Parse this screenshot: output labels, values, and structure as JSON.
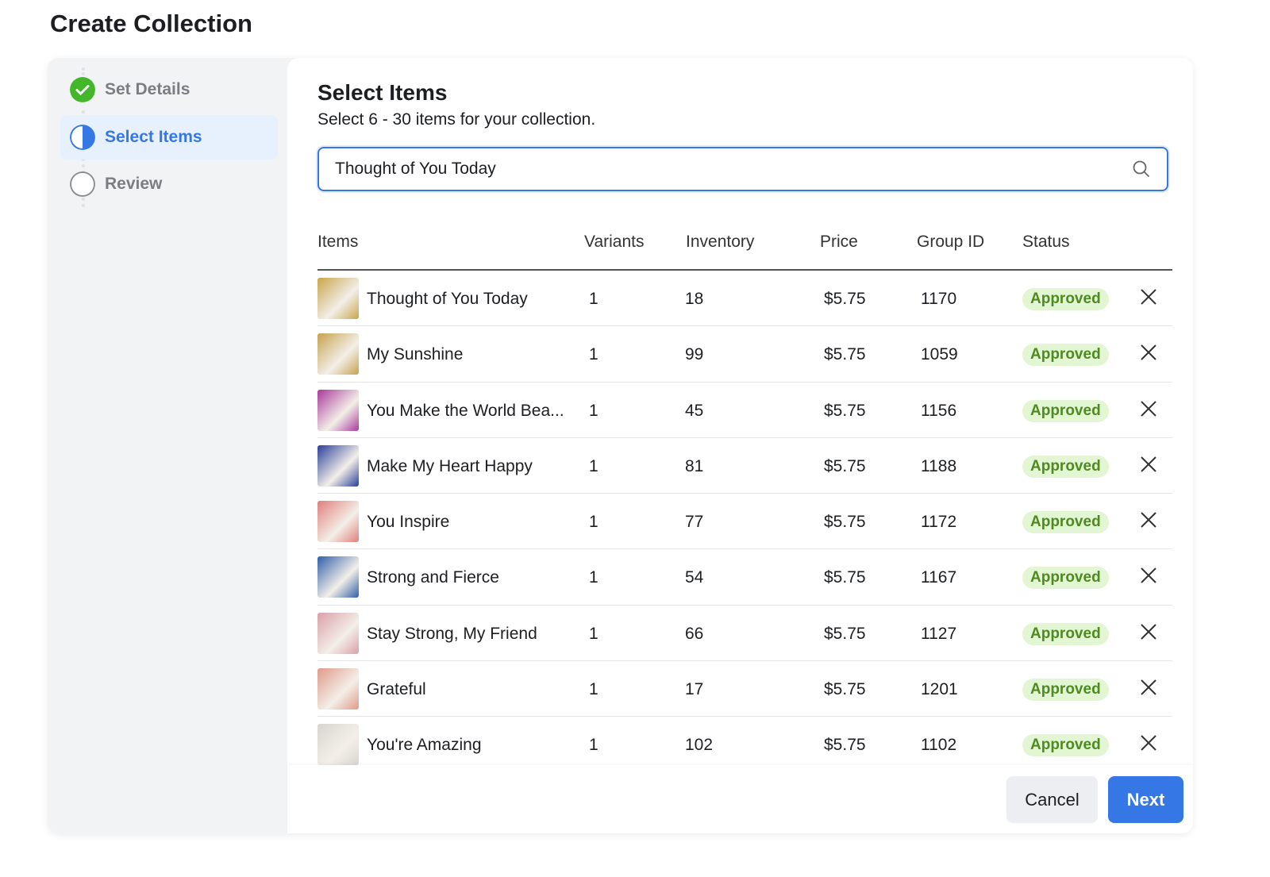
{
  "page_title": "Create Collection",
  "steps": [
    {
      "label": "Set Details",
      "state": "complete"
    },
    {
      "label": "Select Items",
      "state": "active"
    },
    {
      "label": "Review",
      "state": "pending"
    }
  ],
  "main": {
    "title": "Select Items",
    "subtitle": "Select 6 - 30 items for your collection.",
    "search_value": "Thought of You Today"
  },
  "columns": [
    "Items",
    "Variants",
    "Inventory",
    "Price",
    "Group ID",
    "Status"
  ],
  "rows": [
    {
      "name": "Thought of You Today",
      "variants": "1",
      "inventory": "18",
      "price": "$5.75",
      "group": "1170",
      "status": "Approved",
      "thumb": "#c9a54a"
    },
    {
      "name": "My Sunshine",
      "variants": "1",
      "inventory": "99",
      "price": "$5.75",
      "group": "1059",
      "status": "Approved",
      "thumb": "#c6a24e"
    },
    {
      "name": "You Make the World Bea...",
      "variants": "1",
      "inventory": "45",
      "price": "$5.75",
      "group": "1156",
      "status": "Approved",
      "thumb": "#a83a9a"
    },
    {
      "name": "Make My Heart Happy",
      "variants": "1",
      "inventory": "81",
      "price": "$5.75",
      "group": "1188",
      "status": "Approved",
      "thumb": "#2a3f9a"
    },
    {
      "name": "You Inspire",
      "variants": "1",
      "inventory": "77",
      "price": "$5.75",
      "group": "1172",
      "status": "Approved",
      "thumb": "#e07f7a"
    },
    {
      "name": "Strong and Fierce",
      "variants": "1",
      "inventory": "54",
      "price": "$5.75",
      "group": "1167",
      "status": "Approved",
      "thumb": "#2f5fa8"
    },
    {
      "name": "Stay Strong, My Friend",
      "variants": "1",
      "inventory": "66",
      "price": "$5.75",
      "group": "1127",
      "status": "Approved",
      "thumb": "#d9a0a8"
    },
    {
      "name": "Grateful",
      "variants": "1",
      "inventory": "17",
      "price": "$5.75",
      "group": "1201",
      "status": "Approved",
      "thumb": "#e09a8a"
    },
    {
      "name": "You're Amazing",
      "variants": "1",
      "inventory": "102",
      "price": "$5.75",
      "group": "1102",
      "status": "Approved",
      "thumb": "#d8d4d0"
    }
  ],
  "footer": {
    "cancel": "Cancel",
    "next": "Next"
  },
  "colors": {
    "accent": "#3578e5",
    "success": "#42b72a",
    "badge_bg": "#e3f6d3",
    "badge_text": "#4d8a1f"
  }
}
